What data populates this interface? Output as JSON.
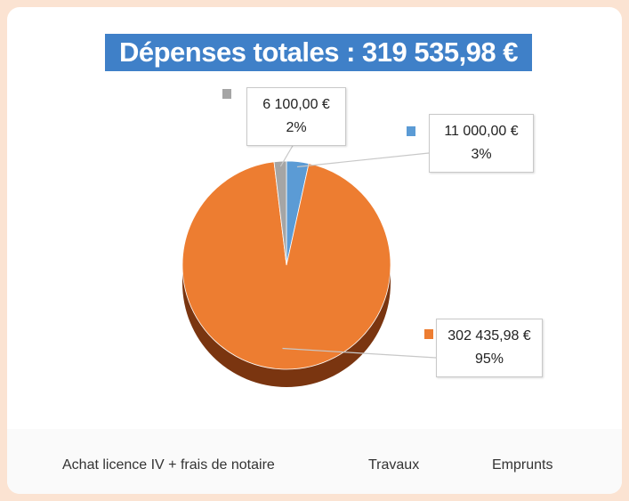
{
  "chart_data": {
    "type": "pie",
    "title": "Dépenses totales : 319 535,98 €",
    "categories": [
      "Achat licence IV + frais de notaire",
      "Travaux",
      "Emprunts"
    ],
    "values": [
      11000,
      302435.98,
      6100
    ],
    "value_labels": [
      "11 000,00 €",
      "302 435,98 €",
      "6 100,00 €"
    ],
    "percent_labels": [
      "3%",
      "95%",
      "2%"
    ],
    "colors": [
      "#5b9bd5",
      "#ed7d31",
      "#a5a5a5"
    ]
  }
}
